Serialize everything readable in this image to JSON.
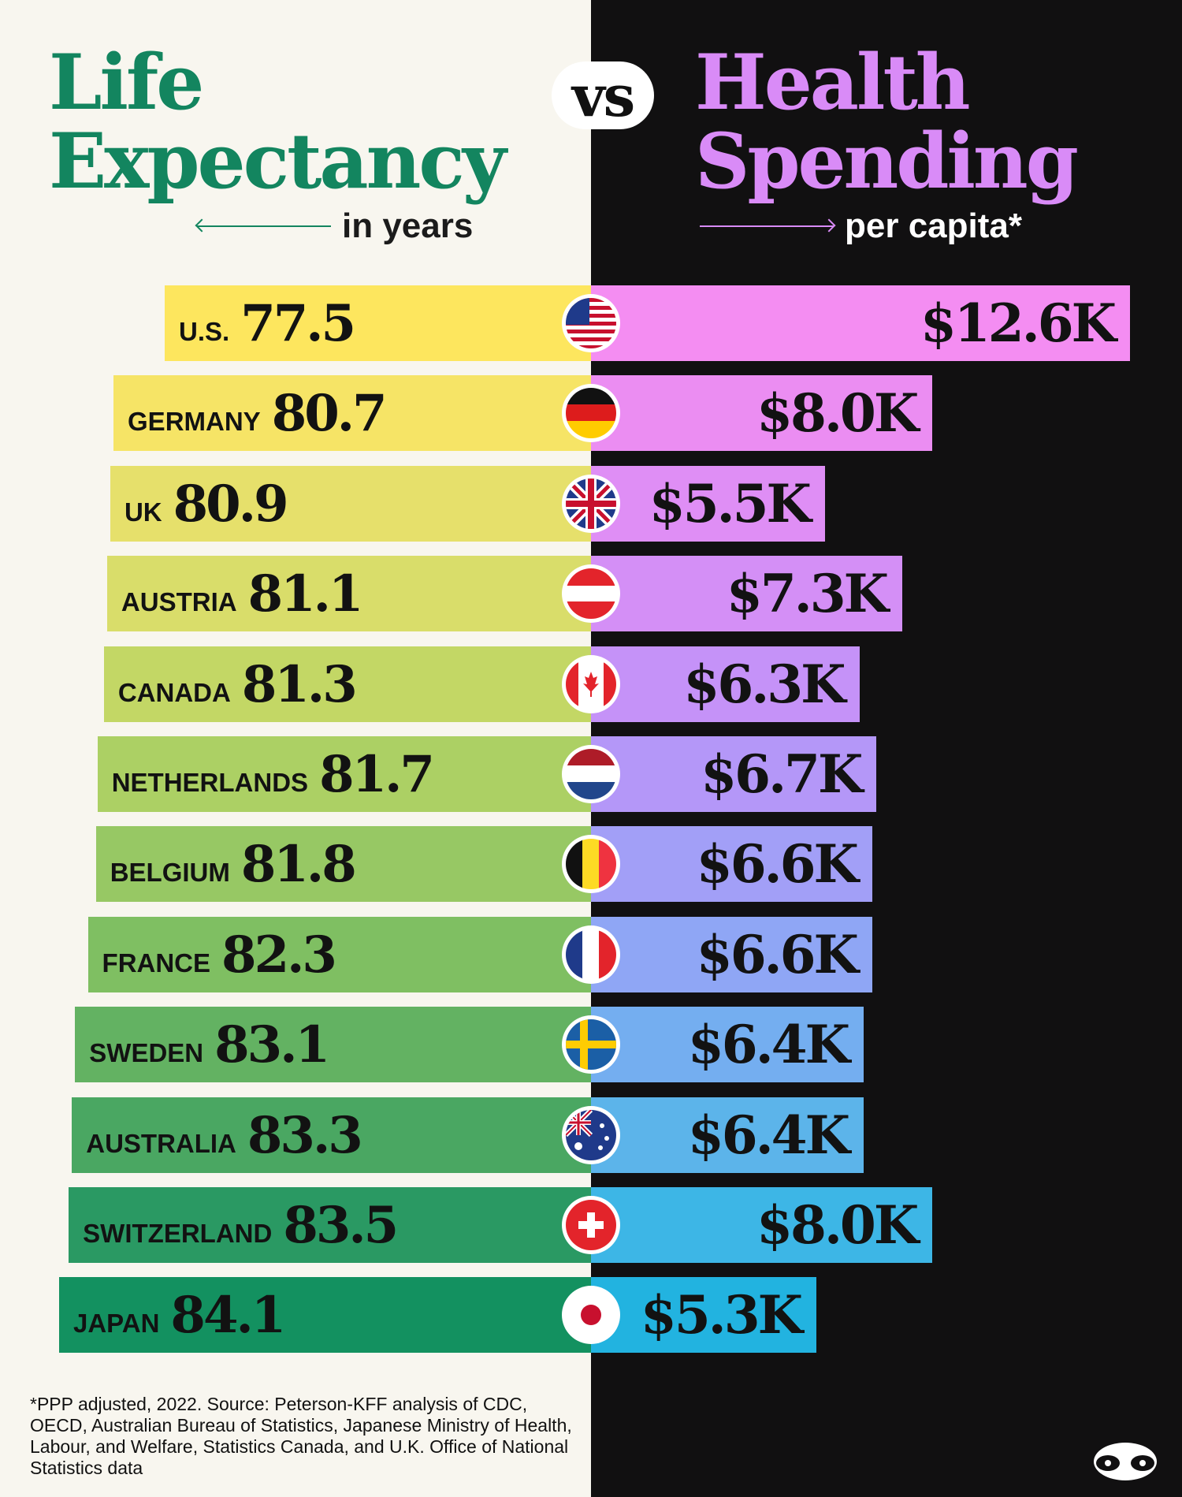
{
  "header": {
    "left_title_line1": "Life",
    "left_title_line2": "Expectancy",
    "left_subtitle": "in years",
    "vs": "vs",
    "right_title_line1": "Health",
    "right_title_line2": "Spending",
    "right_subtitle": "per capita*"
  },
  "footnote": "*PPP adjusted, 2022. Source: Peterson-KFF analysis of CDC, OECD, Australian Bureau of Statistics, Japanese Ministry of Health, Labour, and Welfare, Statistics Canada, and U.K. Office of National Statistics data",
  "colors": {
    "left_background": "#f8f6ef",
    "right_background": "#111011",
    "life_title": "#13855f",
    "health_title": "#d98bf7"
  },
  "chart_data": {
    "type": "bar",
    "categories": [
      "U.S.",
      "GERMANY",
      "UK",
      "AUSTRIA",
      "CANADA",
      "NETHERLANDS",
      "BELGIUM",
      "FRANCE",
      "SWEDEN",
      "AUSTRALIA",
      "SWITZERLAND",
      "JAPAN"
    ],
    "series": [
      {
        "values": [
          77.5,
          80.7,
          80.9,
          81.1,
          81.3,
          81.7,
          81.8,
          82.3,
          83.1,
          83.3,
          83.5,
          84.1
        ],
        "labels": [
          "77.5",
          "80.7",
          "80.9",
          "81.1",
          "81.3",
          "81.7",
          "81.8",
          "82.3",
          "83.1",
          "83.3",
          "83.5",
          "84.1"
        ],
        "colors": [
          "#fde65e",
          "#f6e466",
          "#e6e06b",
          "#d9dd6a",
          "#c3d765",
          "#acd064",
          "#97c864",
          "#7fbf62",
          "#63b262",
          "#4aa762",
          "#2a9963",
          "#139160"
        ]
      },
      {
        "values": [
          12.6,
          8.0,
          5.5,
          7.3,
          6.3,
          6.7,
          6.6,
          6.6,
          6.4,
          6.4,
          8.0,
          5.3
        ],
        "labels": [
          "$12.6K",
          "$8.0K",
          "$5.5K",
          "$7.3K",
          "$6.3K",
          "$6.7K",
          "$6.6K",
          "$6.6K",
          "$6.4K",
          "$6.4K",
          "$8.0K",
          "$5.3K"
        ],
        "colors": [
          "#f48df2",
          "#eb8df2",
          "#df8ef5",
          "#d48ff6",
          "#c592f8",
          "#b497f8",
          "#a29ff7",
          "#8fa6f5",
          "#74aef0",
          "#5cb4ea",
          "#3db6e6",
          "#22b3e0"
        ]
      }
    ],
    "flags": [
      "us-flag-icon",
      "germany-flag-icon",
      "uk-flag-icon",
      "austria-flag-icon",
      "canada-flag-icon",
      "netherlands-flag-icon",
      "belgium-flag-icon",
      "france-flag-icon",
      "sweden-flag-icon",
      "australia-flag-icon",
      "switzerland-flag-icon",
      "japan-flag-icon"
    ]
  }
}
